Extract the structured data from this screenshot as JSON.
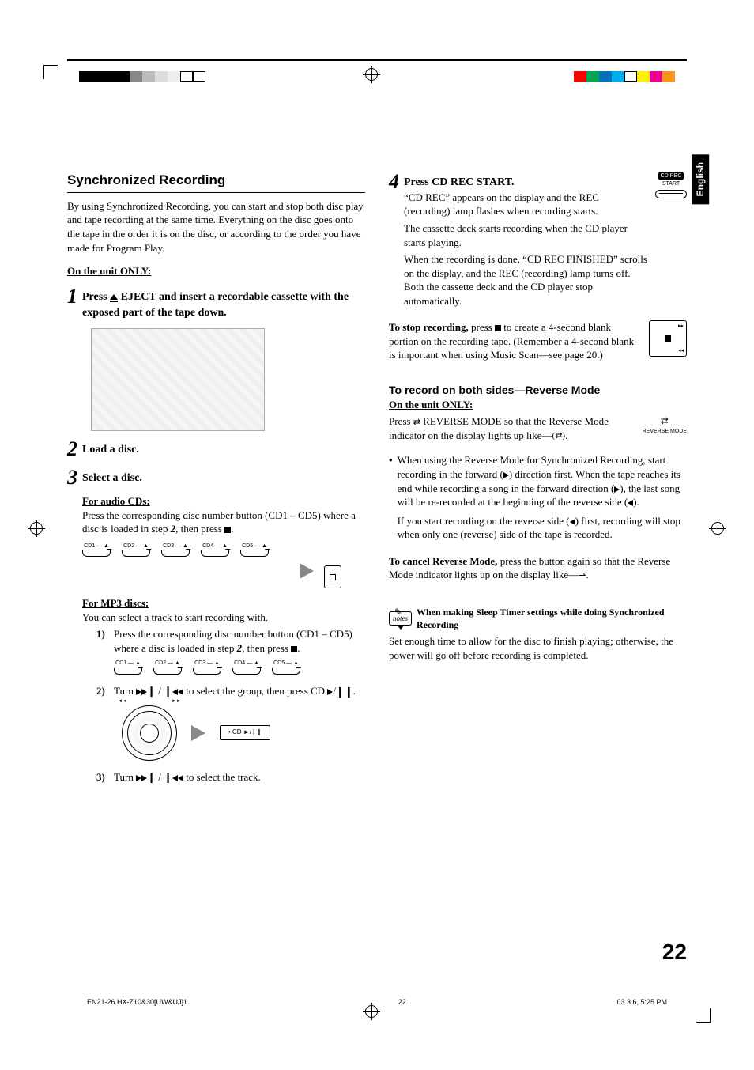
{
  "lang_tab": "English",
  "register_swatches_left": [
    "#000000",
    "#000000",
    "#000000",
    "#000000",
    "#888888",
    "#bbbbbb",
    "#dddddd",
    "#eeeeee",
    "#ffffff",
    "#ffffff"
  ],
  "register_swatches_right": [
    "#ff0000",
    "#00a651",
    "#0072bc",
    "#00aeef",
    "#ffffff",
    "#fff200",
    "#ec008c",
    "#f7941d"
  ],
  "left": {
    "title": "Synchronized Recording",
    "intro": "By using Synchronized Recording, you can start and stop both disc play and tape recording at the same time. Everything on the disc goes onto the tape in the order it is on the disc, or according to the order you have made for Program Play.",
    "unit_only": "On the unit ONLY:",
    "step1_a": "Press ",
    "step1_b": " EJECT and insert a recordable cassette with the exposed part of the tape down.",
    "step2": "Load a disc.",
    "step3": "Select a disc.",
    "audio_cds": "For audio CDs:",
    "audio_cds_body_a": "Press the corresponding disc number button (CD1 – CD5) where a disc is loaded in step ",
    "audio_cds_body_b": ", then press ",
    "audio_cds_body_c": ".",
    "cd_labels": [
      "CD1",
      "CD2",
      "CD3",
      "CD4",
      "CD5"
    ],
    "mp3": "For MP3 discs:",
    "mp3_intro": "You can select a track to start recording with.",
    "mp3_1a": "Press the corresponding disc number button (CD1 – CD5) where a disc is loaded in step ",
    "mp3_1b": ", then press ",
    "mp3_1c": ".",
    "mp3_2a": "Turn ",
    "mp3_2b": " to select the group, then press CD ",
    "mp3_2c": ".",
    "mp3_3a": "Turn ",
    "mp3_3b": " to select the track.",
    "step_num_2_ref": "2",
    "cd_key_label": "• CD ►/❙❙"
  },
  "right": {
    "step4": "Press CD REC START.",
    "btn_top": "CD REC",
    "btn_mid": "START",
    "step4_p1": "“CD REC” appears on the display and the REC (recording) lamp flashes when recording starts.",
    "step4_p2": "The cassette deck starts recording when the CD player starts playing.",
    "step4_p3": "When the recording is done, “CD REC FINISHED” scrolls on the display, and the REC (recording) lamp turns off. Both the cassette deck and the CD player stop automatically.",
    "stop_a": "To stop recording,",
    "stop_b": " press ",
    "stop_c": " to create a 4-second blank portion on the recording tape. (Remember a 4-second blank is important when using Music Scan—see page 20.)",
    "rev_h": "To record on both sides—Reverse Mode",
    "rev_unit": "On the unit ONLY:",
    "rev_p_a": "Press ",
    "rev_p_b": " REVERSE MODE so that the Reverse Mode indicator on the display lights up like—",
    "rev_p_c": ".",
    "rev_btn": "REVERSE MODE",
    "bullet_a": "When using the Reverse Mode for Synchronized Recording, start recording in the forward (",
    "bullet_b": ") direction first. When the tape reaches its end while recording a song in the forward direction (",
    "bullet_c": "), the last song will be re-recorded at the beginning of the reverse side (",
    "bullet_d": ").",
    "bullet2_a": "If you start recording on the reverse side (",
    "bullet2_b": ") first, recording will stop when only one (reverse) side of the tape is recorded.",
    "cancel_a": "To cancel Reverse Mode,",
    "cancel_b": " press the button again so that the Reverse Mode indicator lights up on the display like—",
    "cancel_c": ".",
    "notes_icon": "notes",
    "notes_title": "When making Sleep Timer settings while doing Synchronized Recording",
    "notes_body": "Set enough time to allow for the disc to finish playing; otherwise, the power will go off before recording is completed."
  },
  "page_num": "22",
  "footer_left": "EN21-26.HX-Z10&30[UW&UJ]1",
  "footer_mid": "22",
  "footer_right": "03.3.6, 5:25 PM"
}
